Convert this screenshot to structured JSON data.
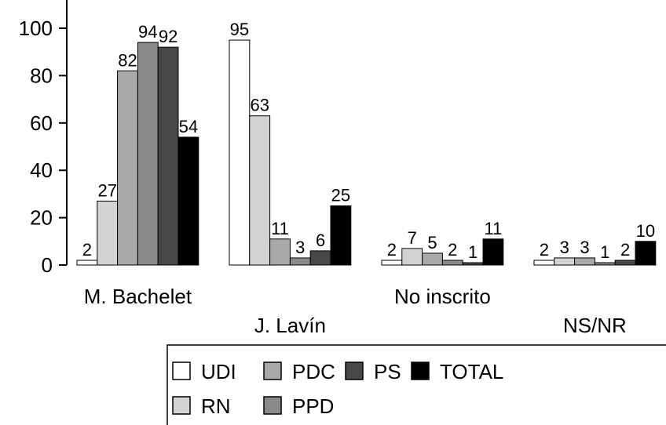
{
  "chart_data": {
    "type": "bar",
    "categories": [
      "M. Bachelet",
      "J. Lavín",
      "No inscrito",
      "NS/NR"
    ],
    "series": [
      {
        "name": "UDI",
        "color": "#ffffff",
        "values": [
          2,
          95,
          2,
          2
        ]
      },
      {
        "name": "RN",
        "color": "#d3d3d3",
        "values": [
          27,
          63,
          7,
          3
        ]
      },
      {
        "name": "PDC",
        "color": "#a9a9a9",
        "values": [
          82,
          11,
          5,
          3
        ]
      },
      {
        "name": "PPD",
        "color": "#8a8a8a",
        "values": [
          94,
          3,
          2,
          1
        ]
      },
      {
        "name": "PS",
        "color": "#474747",
        "values": [
          92,
          6,
          1,
          2
        ]
      },
      {
        "name": "TOTAL",
        "color": "#000000",
        "values": [
          54,
          25,
          11,
          10
        ]
      }
    ],
    "ylim": [
      0,
      100
    ],
    "yticks": [
      0,
      20,
      40,
      60,
      80,
      100
    ],
    "legend_position": "bottom"
  }
}
